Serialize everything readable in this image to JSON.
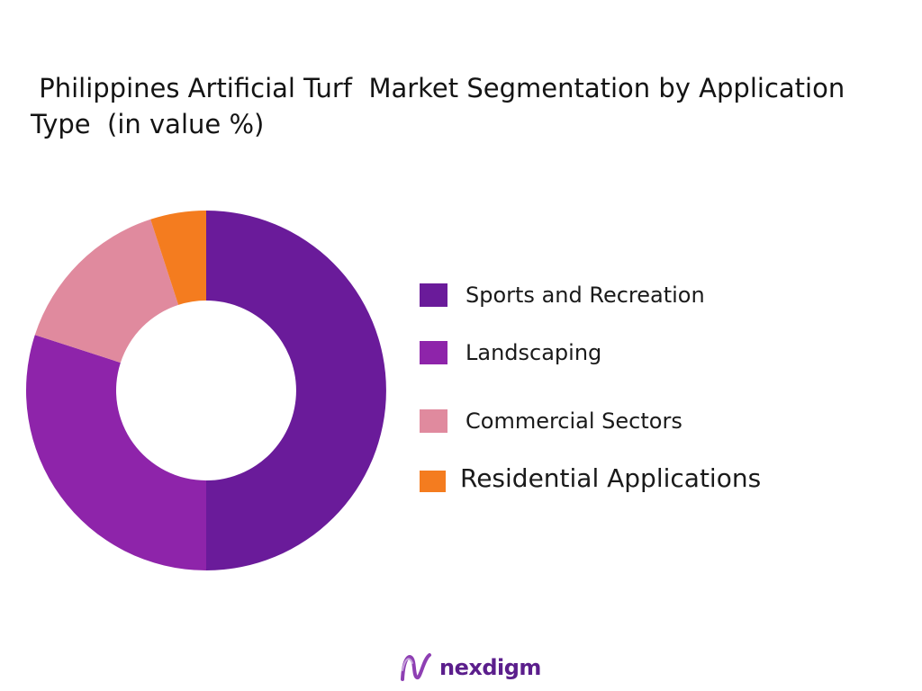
{
  "chart_data": {
    "type": "pie",
    "title": " Philippines Artificial Turf  Market Segmentation by Application Type  (in value %)",
    "categories": [
      "Sports and Recreation",
      "Landscaping",
      "Commercial Sectors",
      "Residential Applications"
    ],
    "values": [
      50,
      30,
      15,
      5
    ],
    "colors": [
      "#6a1b9a",
      "#8e24aa",
      "#e08a9e",
      "#f47c1f"
    ],
    "donut": true,
    "legend": "right"
  },
  "brand": {
    "name": "nexdigm",
    "color": "#5b1e8c",
    "icon": "nexdigm-logo-icon"
  }
}
